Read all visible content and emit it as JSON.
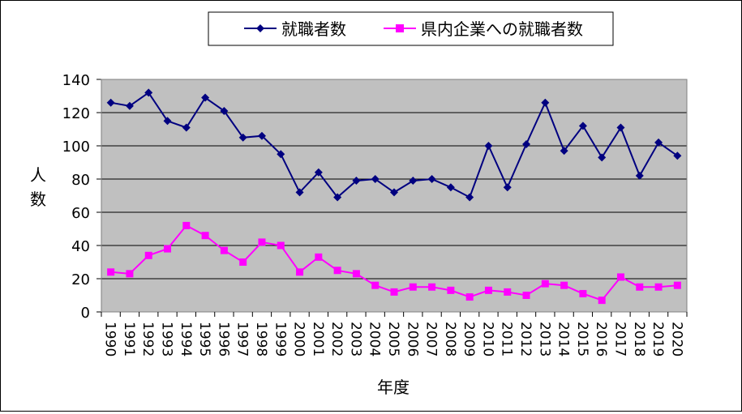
{
  "chart_data": {
    "type": "line",
    "title": "",
    "xlabel": "年度",
    "ylabel": "人数",
    "ylim": [
      0,
      140
    ],
    "yticks": [
      "0",
      "20",
      "40",
      "60",
      "80",
      "100",
      "120",
      "140"
    ],
    "grid": true,
    "legend_position": "top",
    "categories": [
      "1990",
      "1991",
      "1992",
      "1993",
      "1994",
      "1995",
      "1996",
      "1997",
      "1998",
      "1999",
      "2000",
      "2001",
      "2002",
      "2003",
      "2004",
      "2005",
      "2006",
      "2007",
      "2008",
      "2009",
      "2010",
      "2011",
      "2012",
      "2013",
      "2014",
      "2015",
      "2016",
      "2017",
      "2018",
      "2019",
      "2020"
    ],
    "series": [
      {
        "name": "就職者数",
        "color": "#000080",
        "marker": "diamond",
        "values": [
          126,
          124,
          132,
          115,
          111,
          129,
          121,
          105,
          106,
          95,
          72,
          84,
          69,
          79,
          80,
          72,
          79,
          80,
          75,
          69,
          100,
          75,
          101,
          126,
          97,
          112,
          93,
          111,
          82,
          102,
          94
        ]
      },
      {
        "name": "県内企業への就職者数",
        "color": "#ff00ff",
        "marker": "square",
        "values": [
          24,
          23,
          34,
          38,
          52,
          46,
          37,
          30,
          42,
          40,
          24,
          33,
          25,
          23,
          16,
          12,
          15,
          15,
          13,
          9,
          13,
          12,
          10,
          17,
          16,
          11,
          7,
          21,
          15,
          15,
          16
        ]
      }
    ]
  },
  "style": {
    "plot_background": "#c0c0c0",
    "grid_color": "#000000",
    "axis_color": "#000000"
  }
}
